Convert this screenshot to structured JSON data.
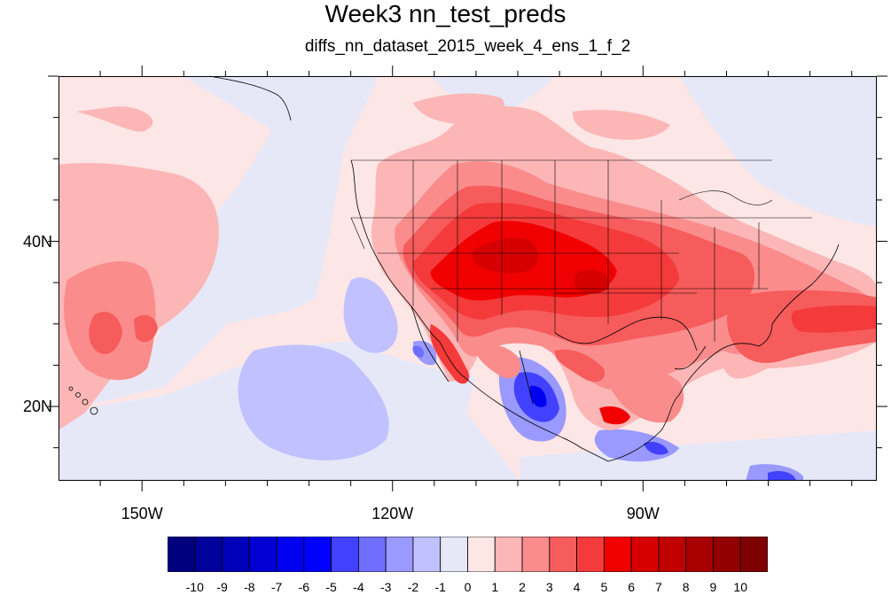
{
  "title": "Week3 nn_test_preds",
  "subtitle": "diffs_nn_dataset_2015_week_4_ens_1_f_2",
  "map": {
    "lon_range": [
      -160,
      -62
    ],
    "lat_range": [
      11,
      60
    ],
    "y_ticks": [
      {
        "value": 40,
        "label": "40N"
      },
      {
        "value": 20,
        "label": "20N"
      }
    ],
    "x_ticks": [
      {
        "value": -150,
        "label": "150W"
      },
      {
        "value": -120,
        "label": "120W"
      },
      {
        "value": -90,
        "label": "90W"
      }
    ],
    "background_color": "#fde6e6"
  },
  "colorbar": {
    "labels": [
      "-10",
      "-9",
      "-8",
      "-7",
      "-6",
      "-5",
      "-4",
      "-3",
      "-2",
      "-1",
      "0",
      "1",
      "2",
      "3",
      "4",
      "5",
      "6",
      "7",
      "8",
      "9",
      "10"
    ],
    "colors": [
      "#00007f",
      "#00009b",
      "#0000b8",
      "#0000d4",
      "#0000f0",
      "#0000ff",
      "#4141ff",
      "#6e6eff",
      "#9999ff",
      "#c1c1ff",
      "#e6e8f8",
      "#fde6e6",
      "#fcb6b6",
      "#fa8c8c",
      "#f65c5c",
      "#f43a3a",
      "#f00000",
      "#d70000",
      "#c00000",
      "#a80000",
      "#930000",
      "#7f0000"
    ]
  }
}
